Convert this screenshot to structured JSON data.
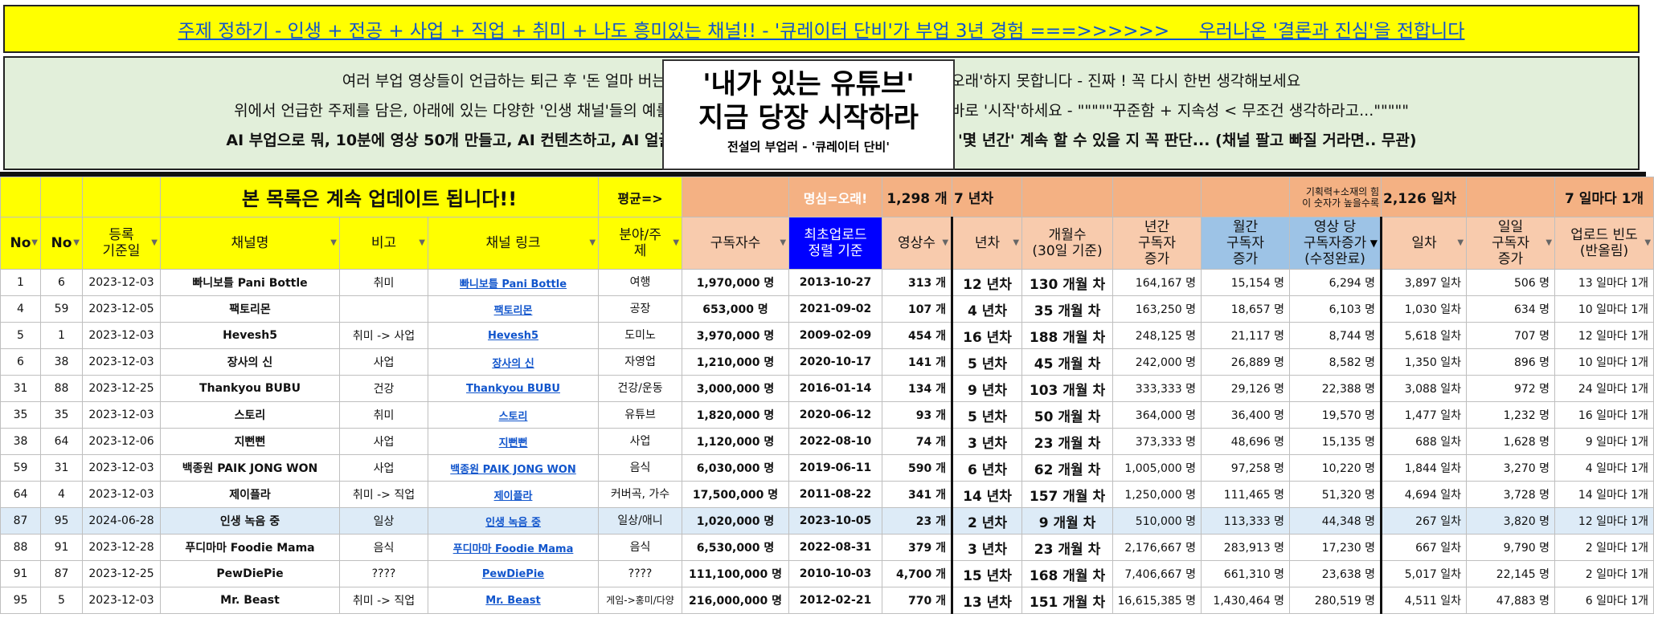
{
  "banner": "주제 정하기 - 인생 + 전공 + 사업 + 직업 + 취미 + 나도 흥미있는 채널!! - '큐레이터 단비'가 부업 3년 경험 ===>>>>>>     우러나온 '결론과 진심'을 전합니다",
  "intro": {
    "line1": "여러 부업 영상들이 언급하는 퇴근 후 '돈 얼마 버는 채                                                  은 '오래'하지 못합니다 - 진짜 ! 꼭 다시 한번 생각해보세요",
    "line2": "위에서 언급한 주제를 담은, 아래에 있는 다양한 '인생 채널'들의 예를 실                                                  고 바로 '시작'하세요 - \"\"\"\"\"꾸준함 + 지속성 < 무조건 생각하라고...\"\"\"\"\"",
    "line3": "AI 부업으로 뭐, 10분에 영상 50개 만들고, AI 컨텐츠하고, AI 얼굴, 아                                        수천개 '몇 년간' 계속 할 수 있을 지 꼭 판단... (채널 팔고 빠질 거라면.. 무관)"
  },
  "overlay": {
    "title1": "'내가 있는 유튜브'",
    "title2": "지금 당장 시작하라",
    "subtitle": "전설의 부업러 - '큐레이터 단비'"
  },
  "summary_row": {
    "notice": "본 목록은 계속 업데이트 됩니다!!",
    "avg_label": "평균=>",
    "motto": "명심=오래!",
    "avg_subs": "1,298 개",
    "avg_years": "7 년차",
    "planning_note": "기획력+소재의 힘\n이 숫자가 높을수록",
    "avg_days": "2,126 일차",
    "avg_freq": "7 일마다 1개"
  },
  "headers": {
    "idx": "No",
    "no": "No",
    "reg_date": "등록\n기준일",
    "channel": "채널명",
    "note": "비고",
    "link": "채널 링크",
    "field": "분야/주\n제",
    "subs": "구독자수",
    "first_upload": "최초업로드\n정렬 기준",
    "videos": "영상수",
    "years": "년차",
    "months": "개월수\n(30일 기준)",
    "yearly_growth": "년간\n구독자\n증가",
    "monthly_growth": "월간\n구독자\n증가",
    "per_video": "영상 당\n구독자증가\n(수정완료)",
    "days": "일차",
    "daily_growth": "일일\n구독자\n증가",
    "freq": "업로드 빈도\n(반올림)"
  },
  "rows": [
    {
      "idx": "1",
      "no": "6",
      "date": "2023-12-03",
      "name": "빠니보틀 Pani Bottle",
      "note": "취미",
      "link": "빠니보틀 Pani Bottle",
      "field": "여행",
      "subs": "1,970,000 명",
      "first": "2013-10-27",
      "videos": "313 개",
      "years": "12 년차",
      "months": "130 개월 차",
      "yg": "164,167 명",
      "mg": "15,154 명",
      "pv": "6,294 명",
      "days": "3,897 일차",
      "dg": "506 명",
      "freq": "13 일마다 1개"
    },
    {
      "idx": "4",
      "no": "59",
      "date": "2023-12-05",
      "name": "팩토리몬",
      "note": "",
      "link": "팩토리몬",
      "field": "공장",
      "subs": "653,000 명",
      "first": "2021-09-02",
      "videos": "107 개",
      "years": "4 년차",
      "months": "35 개월 차",
      "yg": "163,250 명",
      "mg": "18,657 명",
      "pv": "6,103 명",
      "days": "1,030 일차",
      "dg": "634 명",
      "freq": "10 일마다 1개"
    },
    {
      "idx": "5",
      "no": "1",
      "date": "2023-12-03",
      "name": "Hevesh5",
      "note": "취미 -> 사업",
      "link": "Hevesh5",
      "field": "도미노",
      "subs": "3,970,000 명",
      "first": "2009-02-09",
      "videos": "454 개",
      "years": "16 년차",
      "months": "188 개월 차",
      "yg": "248,125 명",
      "mg": "21,117 명",
      "pv": "8,744 명",
      "days": "5,618 일차",
      "dg": "707 명",
      "freq": "12 일마다 1개"
    },
    {
      "idx": "6",
      "no": "38",
      "date": "2023-12-03",
      "name": "장사의 신",
      "note": "사업",
      "link": "장사의 신",
      "field": "자영업",
      "subs": "1,210,000 명",
      "first": "2020-10-17",
      "videos": "141 개",
      "years": "5 년차",
      "months": "45 개월 차",
      "yg": "242,000 명",
      "mg": "26,889 명",
      "pv": "8,582 명",
      "days": "1,350 일차",
      "dg": "896 명",
      "freq": "10 일마다 1개"
    },
    {
      "idx": "31",
      "no": "88",
      "date": "2023-12-25",
      "name": "Thankyou BUBU",
      "note": "건강",
      "link": "Thankyou BUBU",
      "field": "건강/운동",
      "subs": "3,000,000 명",
      "first": "2016-01-14",
      "videos": "134 개",
      "years": "9 년차",
      "months": "103 개월 차",
      "yg": "333,333 명",
      "mg": "29,126 명",
      "pv": "22,388 명",
      "days": "3,088 일차",
      "dg": "972 명",
      "freq": "24 일마다 1개"
    },
    {
      "idx": "35",
      "no": "35",
      "date": "2023-12-03",
      "name": "스토리",
      "note": "취미",
      "link": "스토리",
      "field": "유튜브",
      "subs": "1,820,000 명",
      "first": "2020-06-12",
      "videos": "93 개",
      "years": "5 년차",
      "months": "50 개월 차",
      "yg": "364,000 명",
      "mg": "36,400 명",
      "pv": "19,570 명",
      "days": "1,477 일차",
      "dg": "1,232 명",
      "freq": "16 일마다 1개"
    },
    {
      "idx": "38",
      "no": "64",
      "date": "2023-12-06",
      "name": "지뻔뻔",
      "note": "사업",
      "link": "지뻔뻔",
      "field": "사업",
      "subs": "1,120,000 명",
      "first": "2022-08-10",
      "videos": "74 개",
      "years": "3 년차",
      "months": "23 개월 차",
      "yg": "373,333 명",
      "mg": "48,696 명",
      "pv": "15,135 명",
      "days": "688 일차",
      "dg": "1,628 명",
      "freq": "9 일마다 1개"
    },
    {
      "idx": "59",
      "no": "31",
      "date": "2023-12-03",
      "name": "백종원 PAIK JONG WON",
      "note": "사업",
      "link": "백종원 PAIK JONG WON",
      "field": "음식",
      "subs": "6,030,000 명",
      "first": "2019-06-11",
      "videos": "590 개",
      "years": "6 년차",
      "months": "62 개월 차",
      "yg": "1,005,000 명",
      "mg": "97,258 명",
      "pv": "10,220 명",
      "days": "1,844 일차",
      "dg": "3,270 명",
      "freq": "4 일마다 1개"
    },
    {
      "idx": "64",
      "no": "4",
      "date": "2023-12-03",
      "name": "제이플라",
      "note": "취미 -> 직업",
      "link": "제이플라",
      "field": "커버곡, 가수",
      "subs": "17,500,000 명",
      "first": "2011-08-22",
      "videos": "341 개",
      "years": "14 년차",
      "months": "157 개월 차",
      "yg": "1,250,000 명",
      "mg": "111,465 명",
      "pv": "51,320 명",
      "days": "4,694 일차",
      "dg": "3,728 명",
      "freq": "14 일마다 1개"
    },
    {
      "idx": "87",
      "no": "95",
      "date": "2024-06-28",
      "name": "인생 녹음 중",
      "note": "일상",
      "link": "인생 녹음 중",
      "field": "일상/애니",
      "subs": "1,020,000 명",
      "first": "2023-10-05",
      "videos": "23 개",
      "years": "2 년차",
      "months": "9 개월 차",
      "yg": "510,000 명",
      "mg": "113,333 명",
      "pv": "44,348 명",
      "days": "267 일차",
      "dg": "3,820 명",
      "freq": "12 일마다 1개"
    },
    {
      "idx": "88",
      "no": "91",
      "date": "2023-12-28",
      "name": "푸디마마 Foodie Mama",
      "note": "음식",
      "link": "푸디마마 Foodie Mama",
      "field": "음식",
      "subs": "6,530,000 명",
      "first": "2022-08-31",
      "videos": "379 개",
      "years": "3 년차",
      "months": "23 개월 차",
      "yg": "2,176,667 명",
      "mg": "283,913 명",
      "pv": "17,230 명",
      "days": "667 일차",
      "dg": "9,790 명",
      "freq": "2 일마다 1개"
    },
    {
      "idx": "91",
      "no": "87",
      "date": "2023-12-25",
      "name": "PewDiePie",
      "note": "????",
      "link": "PewDiePie",
      "field": "????",
      "subs": "111,100,000 명",
      "first": "2010-10-03",
      "videos": "4,700 개",
      "years": "15 년차",
      "months": "168 개월 차",
      "yg": "7,406,667 명",
      "mg": "661,310 명",
      "pv": "23,638 명",
      "days": "5,017 일차",
      "dg": "22,145 명",
      "freq": "2 일마다 1개"
    },
    {
      "idx": "95",
      "no": "5",
      "date": "2023-12-03",
      "name": "Mr. Beast",
      "note": "취미 -> 직업",
      "link": "Mr. Beast",
      "field": "게임->홍미/다양",
      "subs": "216,000,000 명",
      "first": "2012-02-21",
      "videos": "770 개",
      "years": "13 년차",
      "months": "151 개월 차",
      "yg": "16,615,385 명",
      "mg": "1,430,464 명",
      "pv": "280,519 명",
      "days": "4,511 일차",
      "dg": "47,883 명",
      "freq": "6 일마다 1개"
    }
  ],
  "selected_row_index": 9
}
